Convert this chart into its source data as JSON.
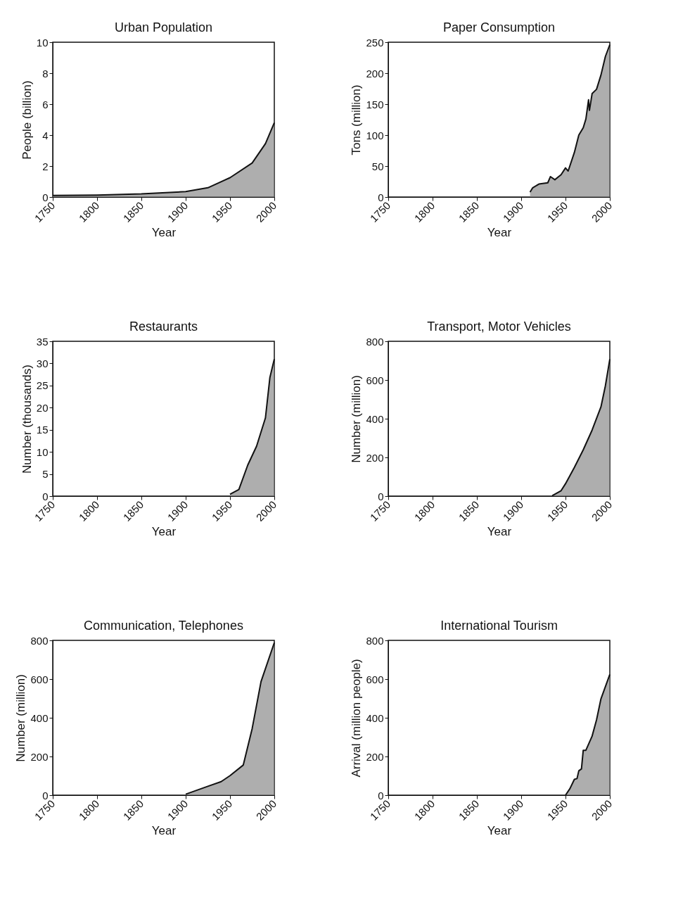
{
  "chart_data": [
    {
      "type": "area",
      "title": "Urban Population",
      "xlabel": "Year",
      "ylabel": "People (billion)",
      "xlim": [
        1750,
        2000
      ],
      "xticks": [
        1750,
        1800,
        1850,
        1900,
        1950,
        2000
      ],
      "ylim": [
        0,
        10
      ],
      "yticks": [
        0,
        2,
        4,
        6,
        8,
        10
      ],
      "grid": false,
      "color": "#8c8c8c",
      "x": [
        1750,
        1800,
        1850,
        1900,
        1925,
        1950,
        1975,
        1990,
        2000
      ],
      "values": [
        0.1,
        0.12,
        0.2,
        0.35,
        0.6,
        1.25,
        2.2,
        3.45,
        4.8
      ]
    },
    {
      "type": "area",
      "title": "Paper Consumption",
      "xlabel": "Year",
      "ylabel": "Tons (million)",
      "xlim": [
        1750,
        2000
      ],
      "xticks": [
        1750,
        1800,
        1850,
        1900,
        1950,
        2000
      ],
      "ylim": [
        0,
        250
      ],
      "yticks": [
        0,
        50,
        100,
        150,
        200,
        250
      ],
      "grid": false,
      "color": "#8c8c8c",
      "x": [
        1910,
        1913,
        1920,
        1930,
        1933,
        1938,
        1945,
        1950,
        1953,
        1960,
        1965,
        1970,
        1973,
        1976,
        1977,
        1980,
        1985,
        1990,
        1995,
        2000
      ],
      "values": [
        8,
        15,
        21,
        23,
        33,
        28,
        36,
        47,
        42,
        72,
        100,
        112,
        126,
        157,
        140,
        167,
        174,
        197,
        227,
        246
      ]
    },
    {
      "type": "area",
      "title": "Restaurants",
      "xlabel": "Year",
      "ylabel": "Number (thousands)",
      "xlim": [
        1750,
        2000
      ],
      "xticks": [
        1750,
        1800,
        1850,
        1900,
        1950,
        2000
      ],
      "ylim": [
        0,
        35
      ],
      "yticks": [
        0,
        5,
        10,
        15,
        20,
        25,
        30,
        35
      ],
      "grid": false,
      "color": "#8c8c8c",
      "x": [
        1950,
        1960,
        1970,
        1980,
        1990,
        1995,
        2000
      ],
      "values": [
        0.4,
        1.5,
        7,
        11.3,
        17.7,
        26.8,
        31
      ]
    },
    {
      "type": "area",
      "title": "Transport, Motor Vehicles",
      "xlabel": "Year",
      "ylabel": "Number (million)",
      "xlim": [
        1750,
        2000
      ],
      "xticks": [
        1750,
        1800,
        1850,
        1900,
        1950,
        2000
      ],
      "ylim": [
        0,
        800
      ],
      "yticks": [
        0,
        200,
        400,
        600,
        800
      ],
      "grid": false,
      "color": "#8c8c8c",
      "x": [
        1935,
        1945,
        1950,
        1960,
        1970,
        1980,
        1990,
        1995,
        2000
      ],
      "values": [
        2,
        28,
        64,
        148,
        239,
        341,
        461,
        570,
        708
      ]
    },
    {
      "type": "area",
      "title": "Communication, Telephones",
      "xlabel": "Year",
      "ylabel": "Number (million)",
      "xlim": [
        1750,
        2000
      ],
      "xticks": [
        1750,
        1800,
        1850,
        1900,
        1950,
        2000
      ],
      "ylim": [
        0,
        800
      ],
      "yticks": [
        0,
        200,
        400,
        600,
        800
      ],
      "grid": false,
      "color": "#8c8c8c",
      "x": [
        1900,
        1925,
        1940,
        1950,
        1965,
        1975,
        1985,
        2000
      ],
      "values": [
        5,
        46,
        70,
        101,
        156,
        344,
        587,
        788
      ]
    },
    {
      "type": "area",
      "title": "International Tourism",
      "xlabel": "Year",
      "ylabel": "Arrival (million people)",
      "xlim": [
        1750,
        2000
      ],
      "xticks": [
        1750,
        1800,
        1850,
        1900,
        1950,
        2000
      ],
      "ylim": [
        0,
        800
      ],
      "yticks": [
        0,
        200,
        400,
        600,
        800
      ],
      "grid": false,
      "color": "#8c8c8c",
      "x": [
        1950,
        1955,
        1960,
        1963,
        1965,
        1968,
        1970,
        1973,
        1980,
        1985,
        1990,
        2000
      ],
      "values": [
        0,
        34,
        82,
        86,
        126,
        136,
        232,
        232,
        305,
        389,
        498,
        624
      ]
    }
  ]
}
